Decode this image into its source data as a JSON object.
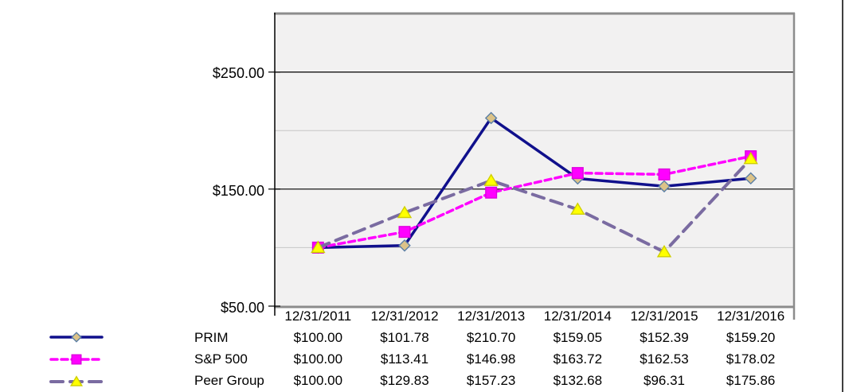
{
  "chart_data": {
    "type": "line",
    "title": "",
    "x": [
      "12/31/2011",
      "12/31/2012",
      "12/31/2013",
      "12/31/2014",
      "12/31/2015",
      "12/31/2016"
    ],
    "series": [
      {
        "name": "PRIM",
        "values": [
          100.0,
          101.78,
          210.7,
          159.05,
          152.39,
          159.2
        ],
        "color": "#10108C",
        "line_style": "solid",
        "marker": "diamond",
        "marker_fill": "#DCC388",
        "marker_stroke": "#5B7FA6"
      },
      {
        "name": "S&P 500",
        "values": [
          100.0,
          113.41,
          146.98,
          163.72,
          162.53,
          178.02
        ],
        "color": "#FF00FF",
        "line_style": "dashed",
        "marker": "square",
        "marker_fill": "#FF00FF",
        "marker_stroke": "#DD00DD"
      },
      {
        "name": "Peer Group",
        "values": [
          100.0,
          129.83,
          157.23,
          132.68,
          96.31,
          175.86
        ],
        "color": "#7A6BA1",
        "line_style": "long-dash",
        "marker": "triangle",
        "marker_fill": "#FFFF00",
        "marker_stroke": "#CFCF00"
      }
    ],
    "ylim": [
      50,
      300
    ],
    "yticks": [
      {
        "value": 250,
        "label": "$250.00"
      },
      {
        "value": 150,
        "label": "$150.00"
      },
      {
        "value": 50,
        "label": "$50.00"
      }
    ],
    "major_gridlines": [
      150,
      250
    ],
    "minor_gridlines": [
      100,
      200
    ],
    "grid": true,
    "legend_position": "bottom-left",
    "plot_bg": "#F2F1F1",
    "grid_major_color": "#000000",
    "grid_minor_color": "#C6C6C6",
    "border_color": "#8C8C8C",
    "axis_color": "#000000",
    "edge_line_color": "#3F3F3F"
  },
  "table": {
    "columns": [
      "12/31/2011",
      "12/31/2012",
      "12/31/2013",
      "12/31/2014",
      "12/31/2015",
      "12/31/2016"
    ],
    "rows": [
      {
        "label": "PRIM",
        "values": [
          "$100.00",
          "$101.78",
          "$210.70",
          "$159.05",
          "$152.39",
          "$159.20"
        ]
      },
      {
        "label": "S&P 500",
        "values": [
          "$100.00",
          "$113.41",
          "$146.98",
          "$163.72",
          "$162.53",
          "$178.02"
        ]
      },
      {
        "label": "Peer Group",
        "values": [
          "$100.00",
          "$129.83",
          "$157.23",
          "$132.68",
          "$96.31",
          "$175.86"
        ]
      }
    ]
  }
}
